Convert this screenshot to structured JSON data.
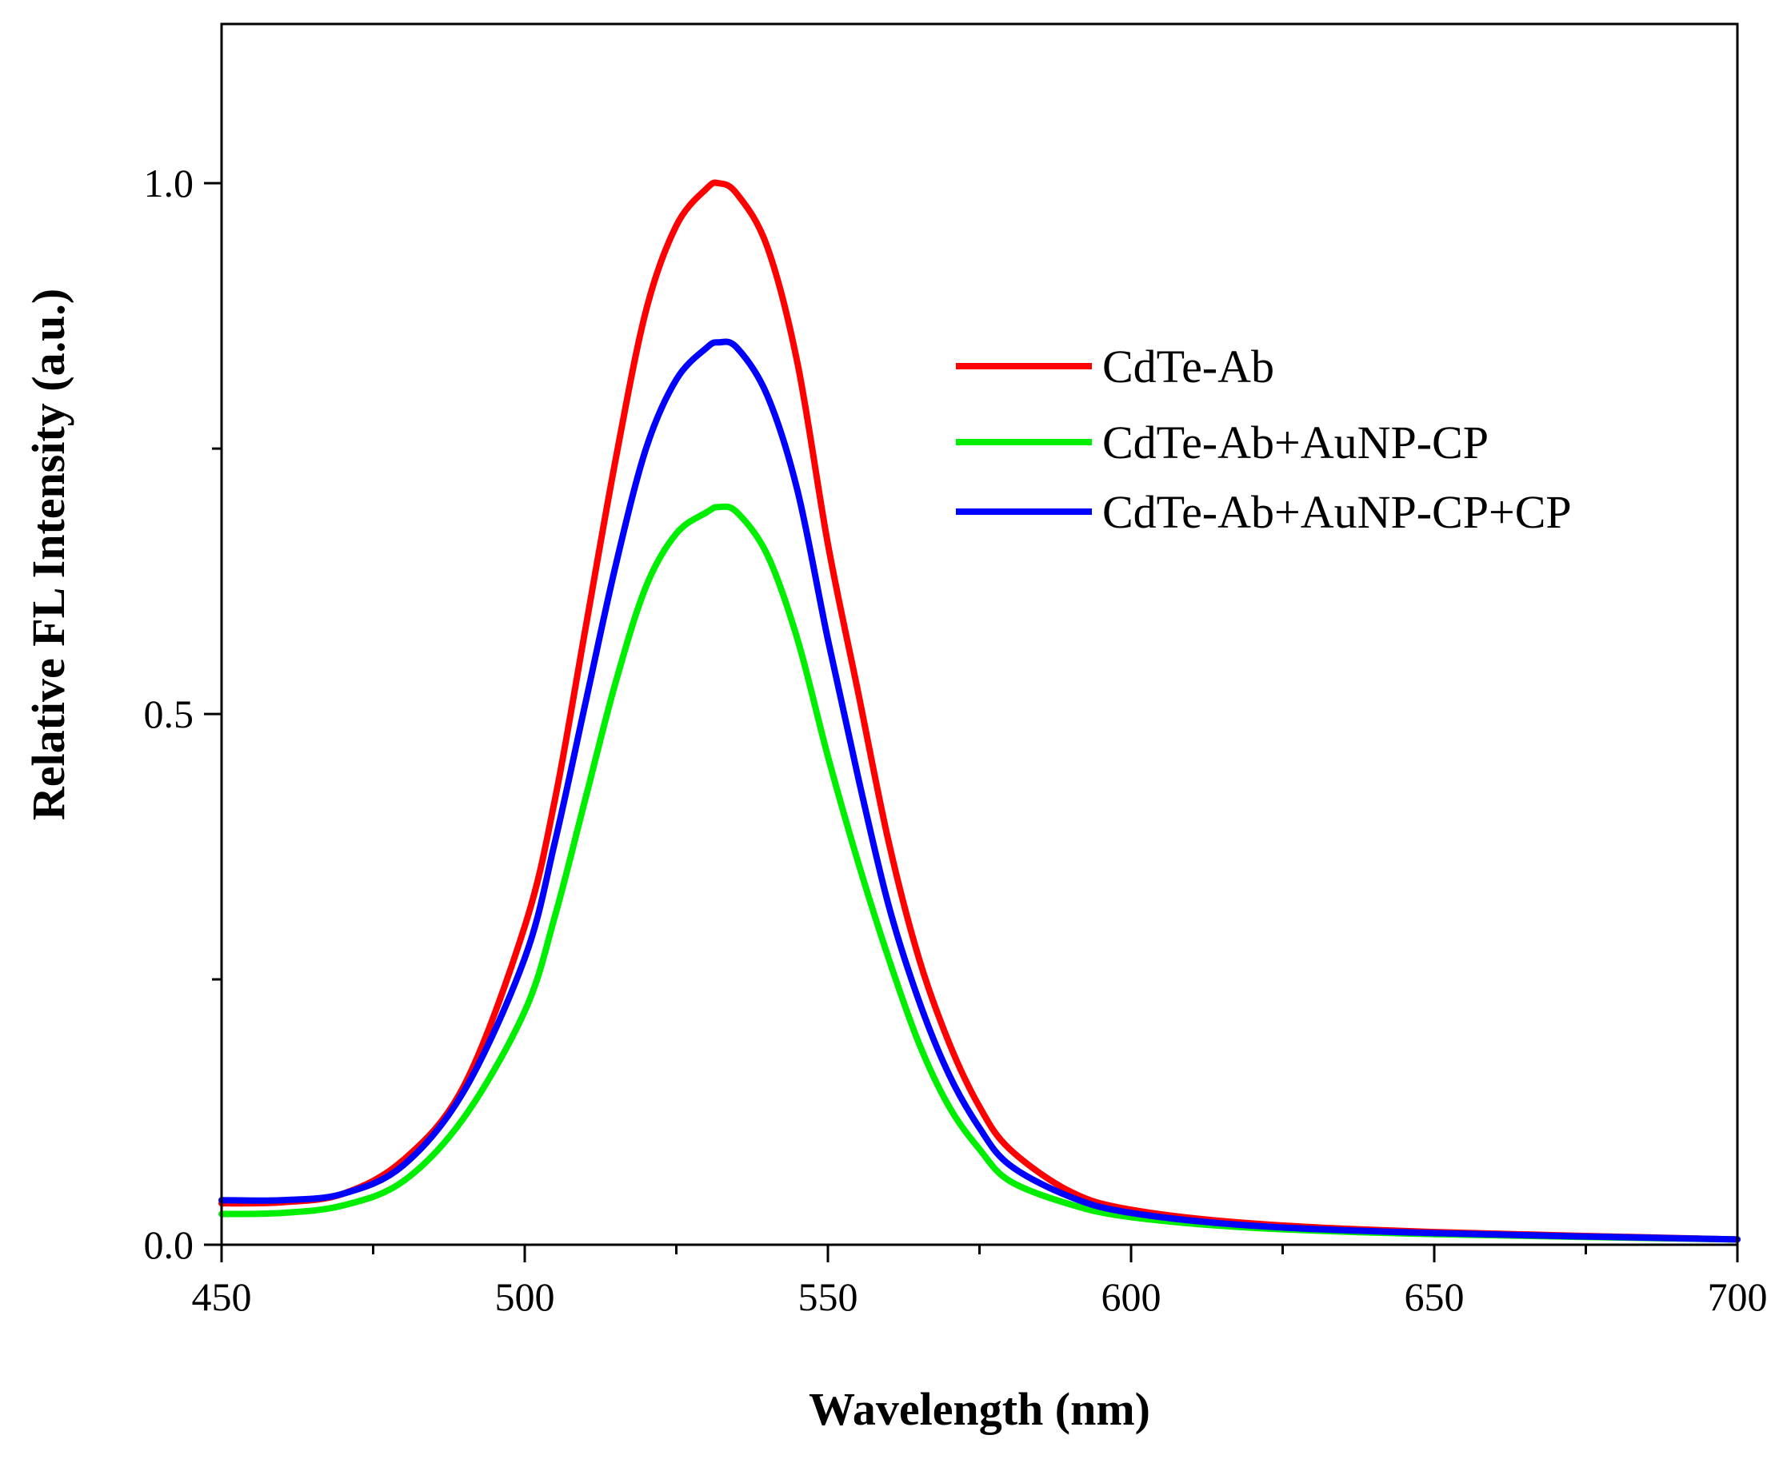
{
  "chart_data": {
    "type": "line",
    "title": "",
    "xlabel": "Wavelength (nm)",
    "ylabel": "Relative FL Intensity (a.u.)",
    "xlim": [
      450,
      700
    ],
    "ylim": [
      0.0,
      1.15
    ],
    "x_ticks": [
      450,
      500,
      550,
      600,
      650,
      700
    ],
    "x_tick_labels": [
      "450",
      "500",
      "550",
      "600",
      "650",
      "700"
    ],
    "x_minor_step": 25,
    "y_ticks": [
      0.0,
      0.5,
      1.0
    ],
    "y_tick_labels": [
      "0.0",
      "0.5",
      "1.0"
    ],
    "y_minor_step": 0.25,
    "grid": false,
    "legend_position": "upper-right",
    "x": [
      450,
      460,
      470,
      480,
      490,
      500,
      505,
      510,
      515,
      520,
      525,
      530,
      532,
      535,
      540,
      545,
      550,
      555,
      560,
      565,
      570,
      575,
      580,
      590,
      600,
      620,
      650,
      700
    ],
    "series": [
      {
        "name": "CdTe-Ab",
        "color": "#ff0000",
        "values": [
          0.039,
          0.04,
          0.048,
          0.08,
          0.15,
          0.3,
          0.42,
          0.58,
          0.74,
          0.88,
          0.96,
          0.995,
          1.0,
          0.99,
          0.94,
          0.83,
          0.66,
          0.52,
          0.38,
          0.27,
          0.19,
          0.13,
          0.09,
          0.05,
          0.033,
          0.02,
          0.012,
          0.005
        ]
      },
      {
        "name": "CdTe-Ab+AuNP-CP",
        "color": "#00ee00",
        "values": [
          0.029,
          0.03,
          0.037,
          0.06,
          0.12,
          0.22,
          0.31,
          0.42,
          0.53,
          0.62,
          0.67,
          0.69,
          0.695,
          0.69,
          0.65,
          0.57,
          0.46,
          0.36,
          0.27,
          0.19,
          0.13,
          0.09,
          0.06,
          0.038,
          0.026,
          0.016,
          0.01,
          0.005
        ]
      },
      {
        "name": "CdTe-Ab+AuNP-CP+CP",
        "color": "#0000ff",
        "values": [
          0.042,
          0.042,
          0.048,
          0.075,
          0.145,
          0.27,
          0.38,
          0.51,
          0.64,
          0.75,
          0.815,
          0.845,
          0.85,
          0.845,
          0.8,
          0.71,
          0.57,
          0.44,
          0.32,
          0.23,
          0.16,
          0.11,
          0.075,
          0.045,
          0.03,
          0.018,
          0.011,
          0.005
        ]
      }
    ]
  }
}
